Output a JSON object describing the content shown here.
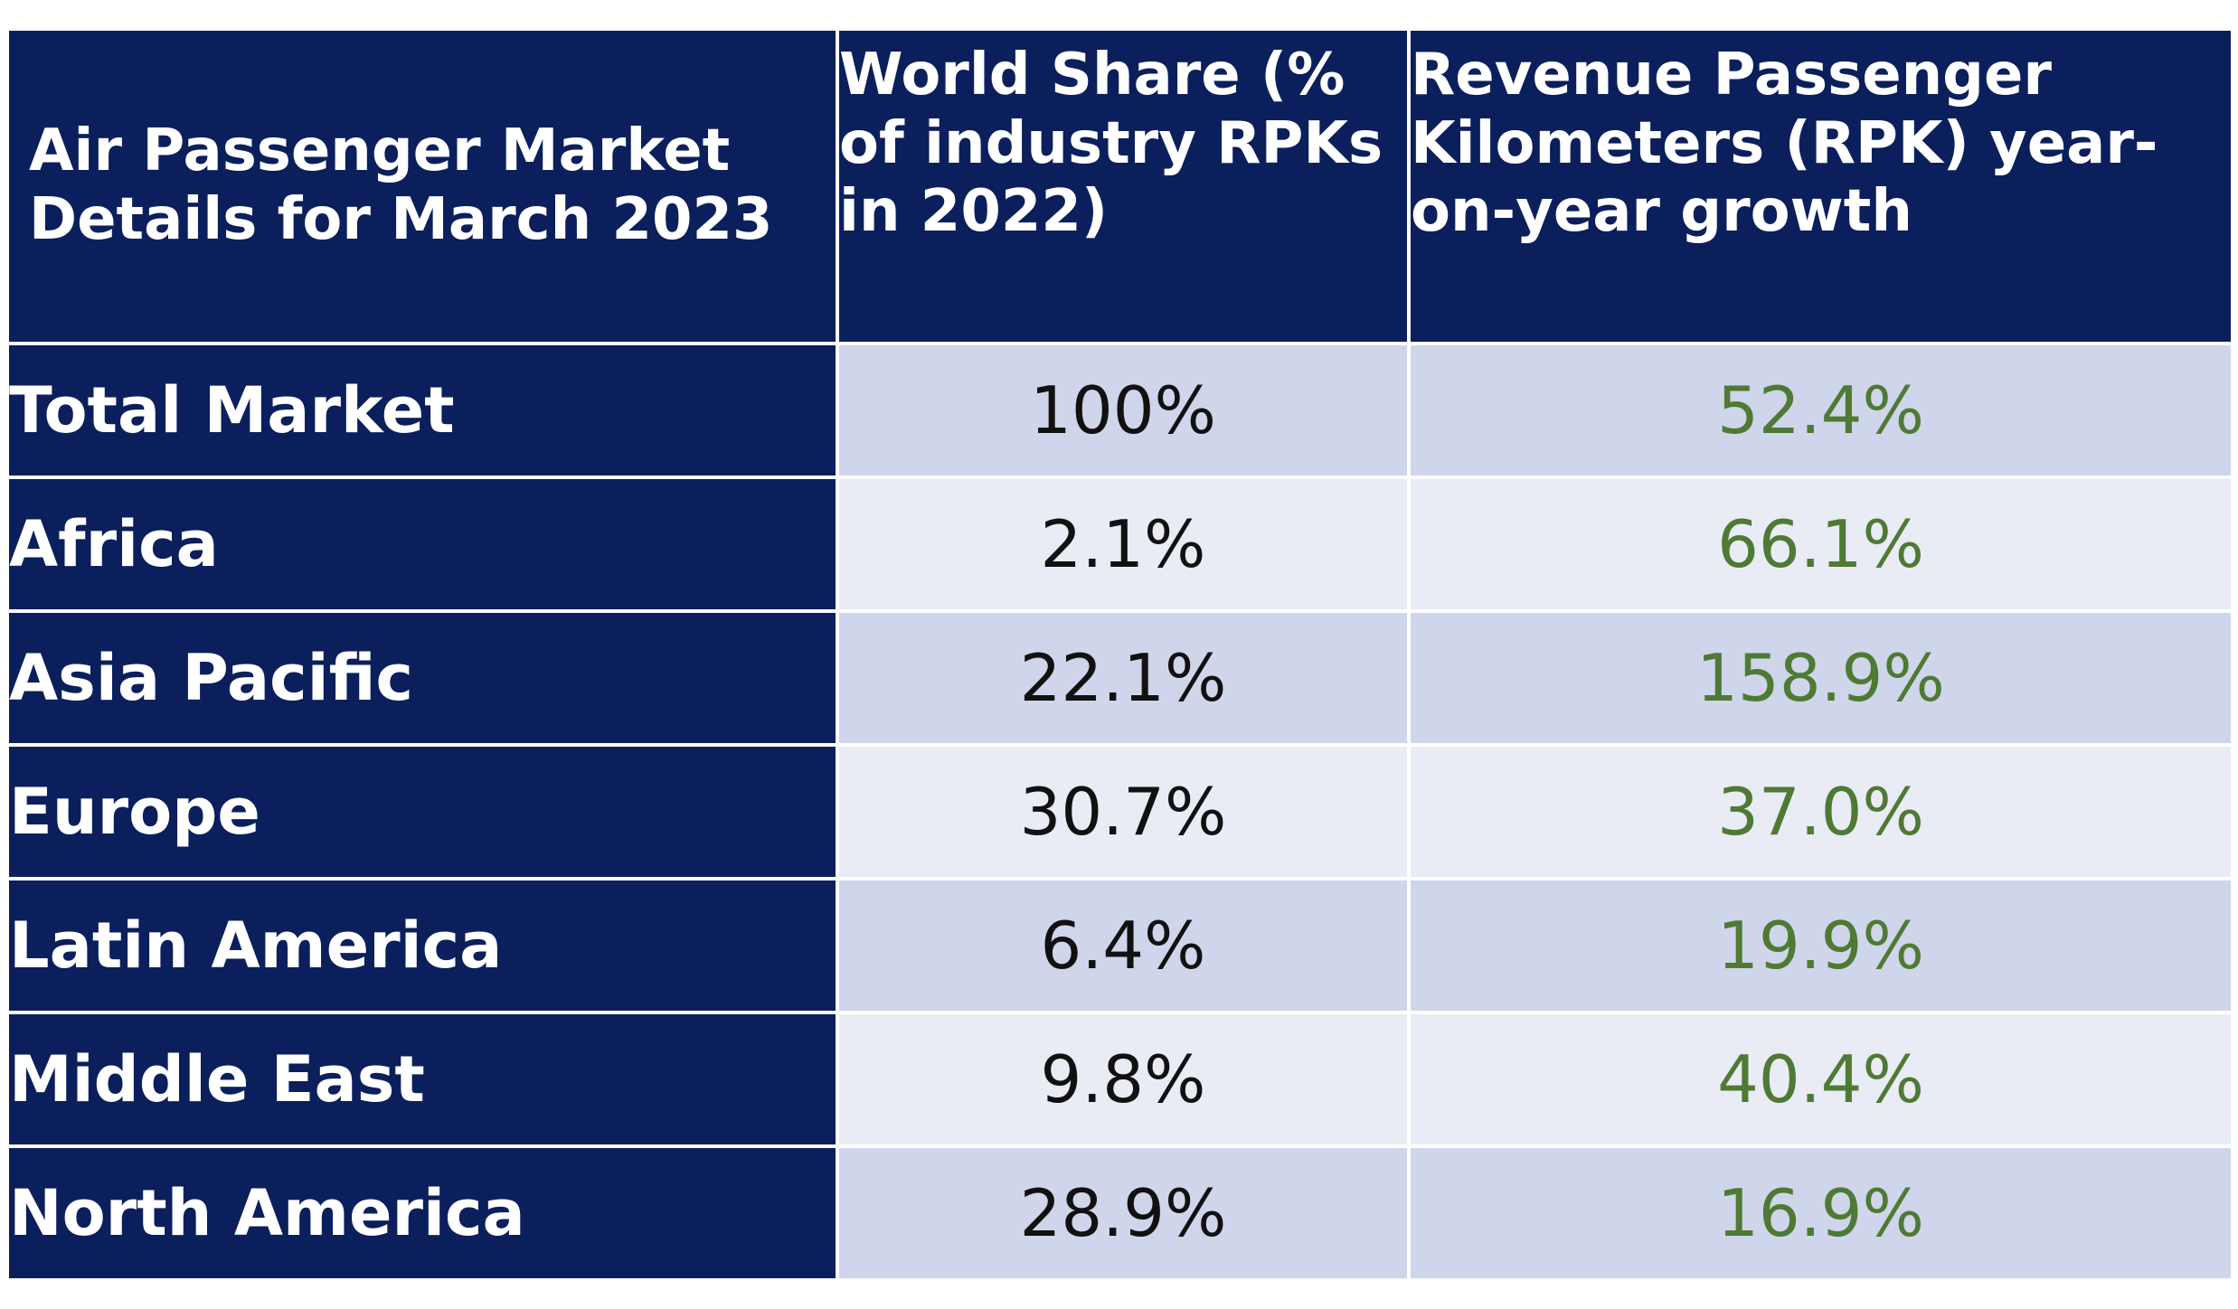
{
  "chart_data": {
    "type": "table",
    "columns": [
      "Air Passenger Market Details for March 2023",
      "World Share (% of industry RPKs in 2022)",
      "Revenue Passenger Kilometers (RPK) year-on-year growth"
    ],
    "rows": [
      {
        "market": "Total Market",
        "share": "100%",
        "growth": "52.4%"
      },
      {
        "market": "Africa",
        "share": "2.1%",
        "growth": "66.1%"
      },
      {
        "market": "Asia Pacific",
        "share": "22.1%",
        "growth": "158.9%"
      },
      {
        "market": "Europe",
        "share": "30.7%",
        "growth": "37.0%"
      },
      {
        "market": "Latin America",
        "share": "6.4%",
        "growth": "19.9%"
      },
      {
        "market": "Middle East",
        "share": "9.8%",
        "growth": "40.4%"
      },
      {
        "market": "North America",
        "share": "28.9%",
        "growth": "16.9%"
      }
    ],
    "colors": {
      "header_bg": "#0b1f5c",
      "header_text": "#ffffff",
      "row_band_dark": "#cfd5ea",
      "row_band_light": "#e9ebf5",
      "growth_text": "#4e7a34"
    }
  }
}
